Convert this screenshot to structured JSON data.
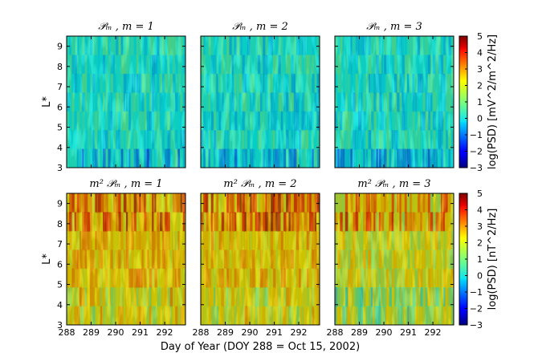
{
  "chart_data": {
    "type": "heatmap",
    "xlabel": "Day of Year (DOY 288 = Oct 15, 2002)",
    "x_ticks": [
      288,
      289,
      290,
      291,
      292
    ],
    "xlim": [
      288,
      292.85
    ],
    "y_ticks": [
      3,
      4,
      5,
      6,
      7,
      8,
      9
    ],
    "ylim": [
      3,
      9.5
    ],
    "ylabel": "L*",
    "colormap": "jet",
    "rows": [
      {
        "colorbar": {
          "label": "log(PSD) [mV^2/m^2/Hz]",
          "ticks": [
            5,
            4,
            3,
            2,
            1,
            0,
            -1,
            -2,
            -3
          ],
          "range": [
            -3,
            5
          ]
        },
        "typical_value": 0.2,
        "panels": [
          {
            "title": "𝒫ₘ , m = 1",
            "mode": 1
          },
          {
            "title": "𝒫ₘ , m = 2",
            "mode": 2
          },
          {
            "title": "𝒫ₘ , m = 3",
            "mode": 3
          }
        ]
      },
      {
        "colorbar": {
          "label": "log(PSD) [nT^2/Hz]",
          "ticks": [
            5,
            4,
            3,
            2,
            1,
            0,
            -1,
            -2,
            -3
          ],
          "range": [
            -3,
            5
          ]
        },
        "typical_value": 2.3,
        "panels": [
          {
            "title": "m² 𝒫ₘ , m = 1",
            "mode": 1
          },
          {
            "title": "m² 𝒫ₘ , m = 2",
            "mode": 2
          },
          {
            "title": "m² 𝒫ₘ , m = 3",
            "mode": 3
          }
        ]
      }
    ]
  }
}
